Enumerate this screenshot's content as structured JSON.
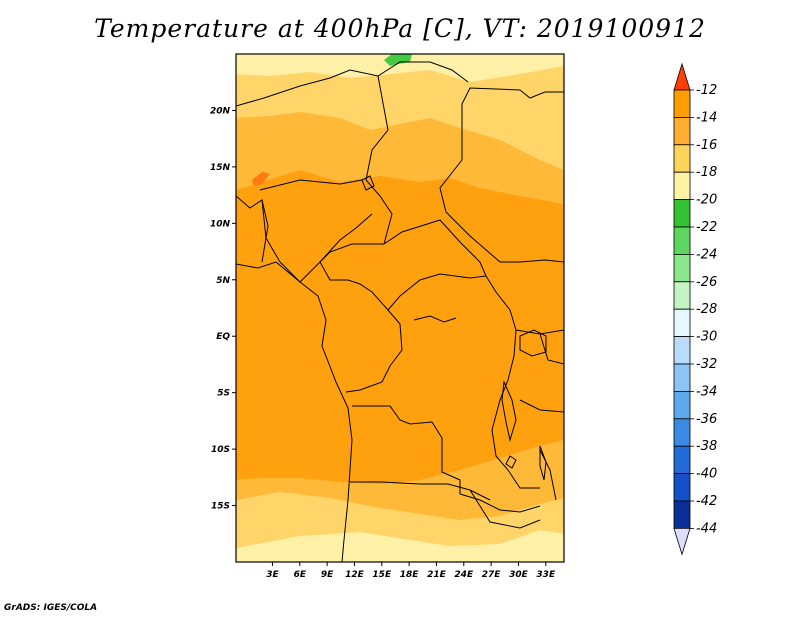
{
  "title": "Temperature at 400hPa [C], VT: 2019100912",
  "credit": "GrADS: IGES/COLA",
  "map": {
    "lon_range": [
      -1,
      35
    ],
    "lat_range": [
      -20,
      25
    ],
    "lon_ticks": [
      {
        "value": 3,
        "label": "3E"
      },
      {
        "value": 6,
        "label": "6E"
      },
      {
        "value": 9,
        "label": "9E"
      },
      {
        "value": 12,
        "label": "12E"
      },
      {
        "value": 15,
        "label": "15E"
      },
      {
        "value": 18,
        "label": "18E"
      },
      {
        "value": 21,
        "label": "21E"
      },
      {
        "value": 24,
        "label": "24E"
      },
      {
        "value": 27,
        "label": "27E"
      },
      {
        "value": 30,
        "label": "30E"
      },
      {
        "value": 33,
        "label": "33E"
      }
    ],
    "lat_ticks": [
      {
        "value": 20,
        "label": "20N"
      },
      {
        "value": 15,
        "label": "15N"
      },
      {
        "value": 10,
        "label": "10N"
      },
      {
        "value": 5,
        "label": "5N"
      },
      {
        "value": 0,
        "label": "EQ"
      },
      {
        "value": -5,
        "label": "5S"
      },
      {
        "value": -10,
        "label": "10S"
      },
      {
        "value": -15,
        "label": "15S"
      }
    ]
  },
  "colorbar": {
    "labels": [
      "-12",
      "-14",
      "-16",
      "-18",
      "-20",
      "-22",
      "-24",
      "-26",
      "-28",
      "-30",
      "-32",
      "-34",
      "-36",
      "-38",
      "-40",
      "-42",
      "-44"
    ],
    "colors": [
      "#ff6a00",
      "#ff9d00",
      "#ffad33",
      "#ffd45c",
      "#fff2a3",
      "#33c233",
      "#5cd65c",
      "#8ae68a",
      "#c2f5c2",
      "#e6f7ff",
      "#b8dcfa",
      "#8cc4f5",
      "#5ea8ee",
      "#3a8ae3",
      "#226ad6",
      "#1450c8",
      "#0a2f96",
      "#001066"
    ],
    "top_color": "#ff4000",
    "bottom_color": "#ddddff"
  },
  "field_colors": {
    "c12": "#ff7a10",
    "c14": "#ffa10f",
    "c16": "#ffb938",
    "c18": "#ffd56a",
    "c20": "#fff0a8",
    "c22": "#44c944"
  }
}
